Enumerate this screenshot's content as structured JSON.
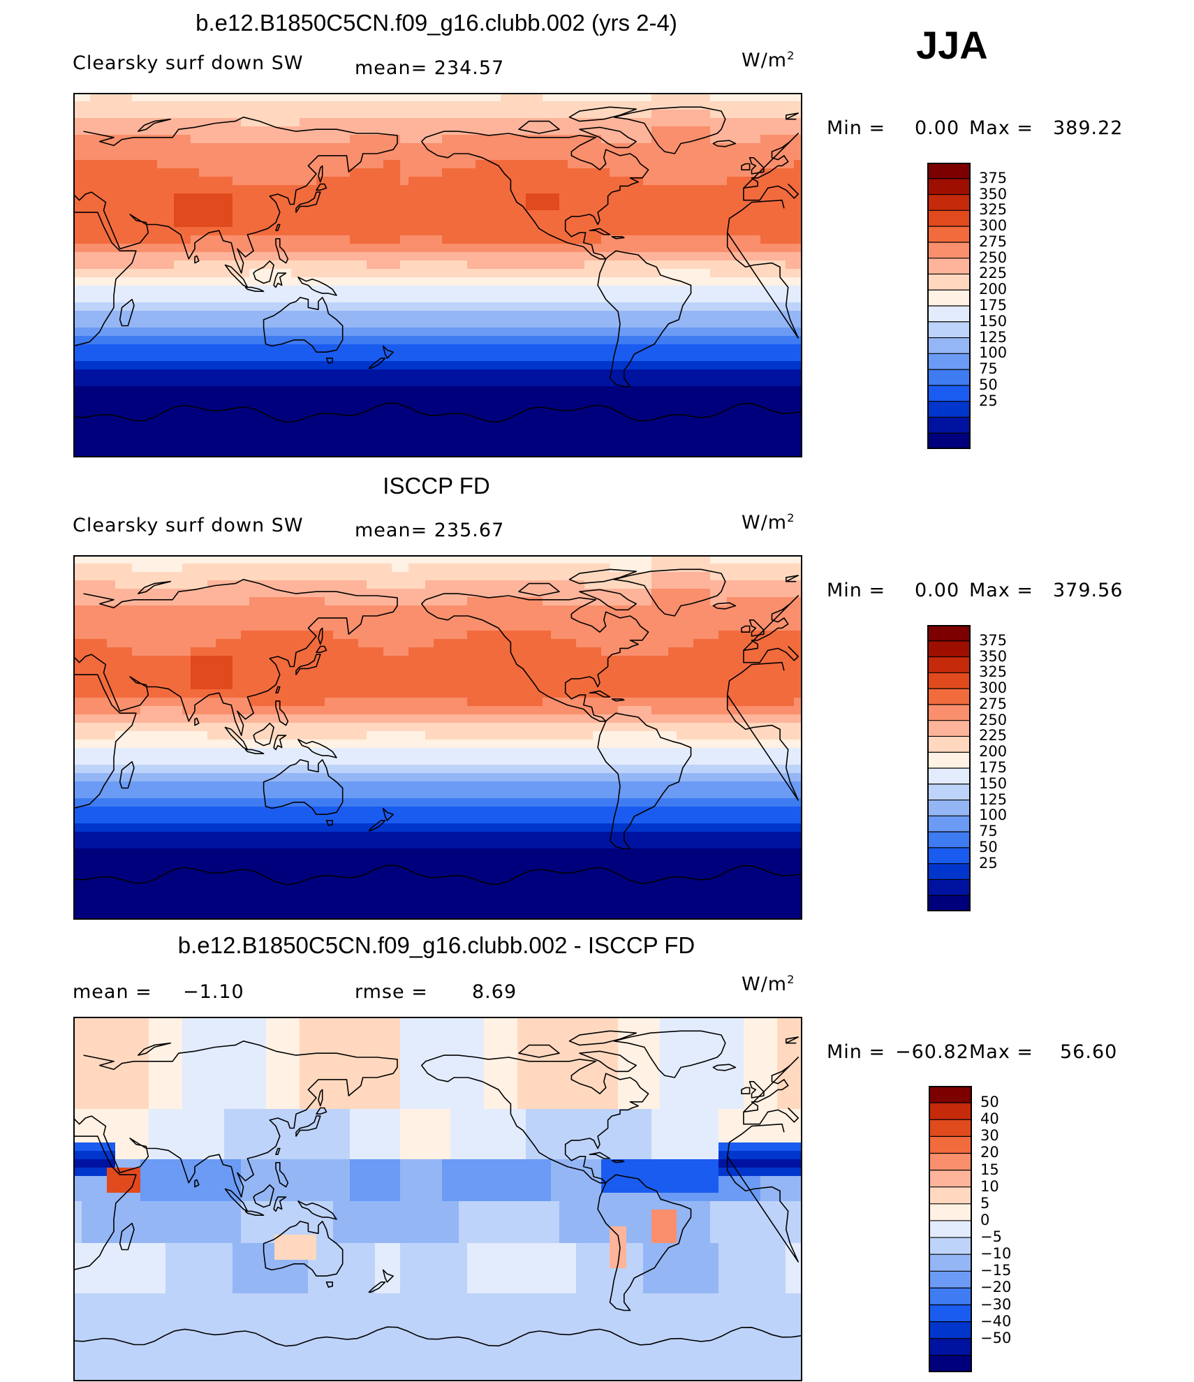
{
  "season": "JJA",
  "colorbar_main": [
    "#00007d",
    "#0013a0",
    "#0036cc",
    "#1a5cf0",
    "#3f7cf2",
    "#6b9bf4",
    "#94b6f5",
    "#bed3f9",
    "#e3ecfd",
    "#fff1e3",
    "#ffd8bf",
    "#fdb49a",
    "#f98f6c",
    "#f26b3d",
    "#e04a1d",
    "#c52a0a",
    "#9e0f00",
    "#7c0000"
  ],
  "colorbar_diff": [
    "#00007d",
    "#0013a0",
    "#0036cc",
    "#1a5cf0",
    "#3f7cf2",
    "#6b9bf4",
    "#94b6f5",
    "#bed3f9",
    "#e3ecfd",
    "#fff1e3",
    "#ffd8bf",
    "#fdb49a",
    "#f98f6c",
    "#f26b3d",
    "#e04a1d",
    "#c52a0a",
    "#7c0000"
  ],
  "coast_color": "#000000",
  "chart_data": [
    {
      "type": "heatmap",
      "title": "b.e12.B1850C5CN.f09_g16.clubb.002 (yrs 2-4)",
      "variable": "Clearsky surf down SW",
      "stat_text": "mean= 234.57",
      "units": "W/m",
      "units_exp": "2",
      "min_text": "Min =",
      "min_val": "0.00",
      "max_text": "Max =",
      "max_val": "389.22",
      "levels": [
        "375",
        "350",
        "325",
        "300",
        "275",
        "250",
        "225",
        "200",
        "175",
        "150",
        "125",
        "100",
        "75",
        "50",
        "25"
      ],
      "season": "JJA"
    },
    {
      "type": "heatmap",
      "title": "ISCCP FD",
      "variable": "Clearsky surf down SW",
      "stat_text": "mean= 235.67",
      "units": "W/m",
      "units_exp": "2",
      "min_text": "Min =",
      "min_val": "0.00",
      "max_text": "Max =",
      "max_val": "379.56",
      "levels": [
        "375",
        "350",
        "325",
        "300",
        "275",
        "250",
        "225",
        "200",
        "175",
        "150",
        "125",
        "100",
        "75",
        "50",
        "25"
      ]
    },
    {
      "type": "heatmap",
      "title": "b.e12.B1850C5CN.f09_g16.clubb.002 - ISCCP FD",
      "mean_label": "mean =",
      "mean_val": "−1.10",
      "rmse_label": "rmse =",
      "rmse_val": "8.69",
      "units": "W/m",
      "units_exp": "2",
      "min_text": "Min =",
      "min_val": "−60.82",
      "max_text": "Max =",
      "max_val": "56.60",
      "levels": [
        "50",
        "40",
        "30",
        "20",
        "15",
        "10",
        "5",
        "0",
        "−5",
        "−10",
        "−15",
        "−20",
        "−30",
        "−40",
        "−50"
      ]
    }
  ]
}
